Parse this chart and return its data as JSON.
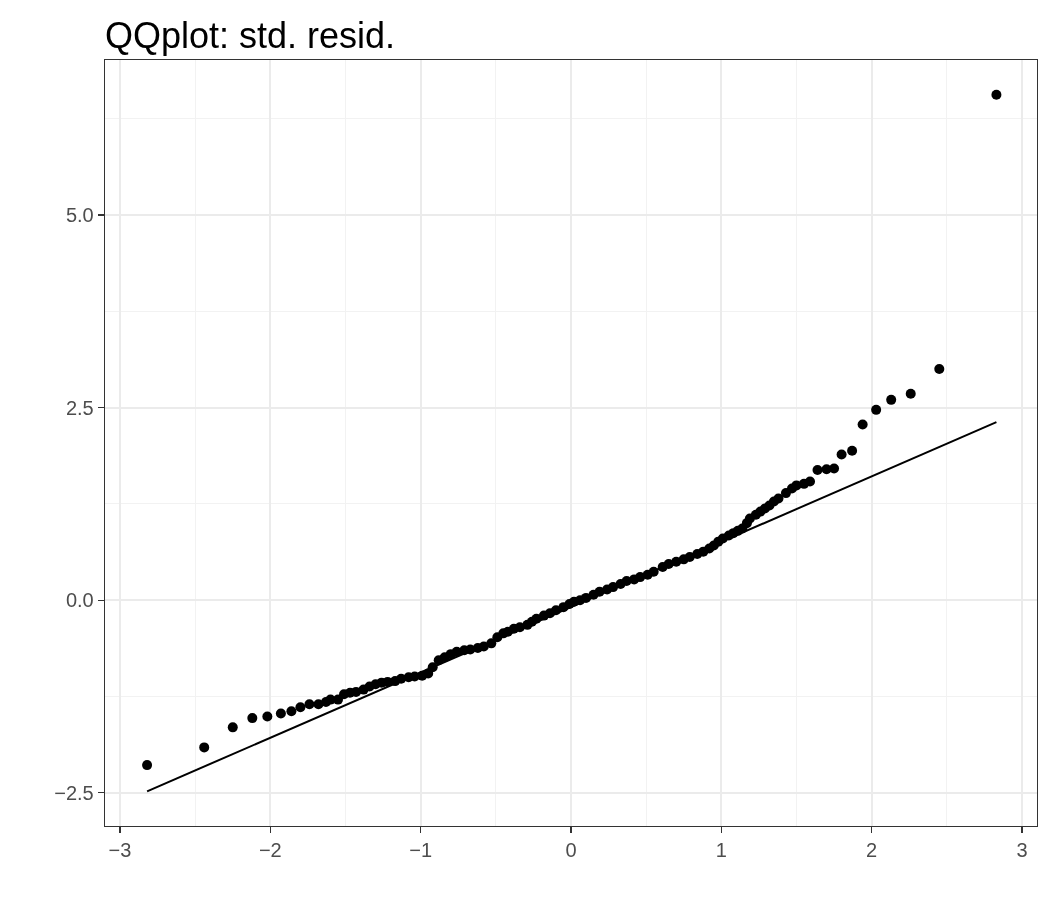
{
  "chart_data": {
    "type": "scatter",
    "title": "QQplot: std. resid.",
    "series": [
      {
        "type": "scatter",
        "color": "#000000",
        "marker": "circle",
        "x": [
          -2.82,
          -2.44,
          -2.25,
          -2.12,
          -2.02,
          -1.93,
          -1.86,
          -1.8,
          -1.74,
          -1.68,
          -1.63,
          -1.6,
          -1.55,
          -1.51,
          -1.47,
          -1.43,
          -1.38,
          -1.34,
          -1.3,
          -1.26,
          -1.22,
          -1.17,
          -1.13,
          -1.08,
          -1.04,
          -0.99,
          -0.95,
          -0.92,
          -0.88,
          -0.84,
          -0.8,
          -0.76,
          -0.71,
          -0.67,
          -0.62,
          -0.58,
          -0.53,
          -0.49,
          -0.45,
          -0.42,
          -0.38,
          -0.34,
          -0.29,
          -0.26,
          -0.23,
          -0.18,
          -0.14,
          -0.1,
          -0.05,
          -0.01,
          0.02,
          0.06,
          0.1,
          0.15,
          0.19,
          0.24,
          0.28,
          0.33,
          0.37,
          0.42,
          0.46,
          0.51,
          0.55,
          0.61,
          0.65,
          0.7,
          0.75,
          0.79,
          0.84,
          0.88,
          0.92,
          0.95,
          0.98,
          1.01,
          1.05,
          1.08,
          1.11,
          1.14,
          1.17,
          1.19,
          1.23,
          1.26,
          1.29,
          1.32,
          1.35,
          1.38,
          1.43,
          1.47,
          1.5,
          1.55,
          1.59,
          1.64,
          1.7,
          1.75,
          1.8,
          1.87,
          1.94,
          2.03,
          2.13,
          2.26,
          2.45,
          2.83
        ],
        "values": [
          -2.14,
          -1.91,
          -1.65,
          -1.53,
          -1.51,
          -1.47,
          -1.44,
          -1.39,
          -1.35,
          -1.35,
          -1.32,
          -1.29,
          -1.29,
          -1.22,
          -1.2,
          -1.19,
          -1.16,
          -1.12,
          -1.09,
          -1.07,
          -1.06,
          -1.05,
          -1.02,
          -1.0,
          -0.99,
          -0.98,
          -0.95,
          -0.87,
          -0.78,
          -0.74,
          -0.7,
          -0.67,
          -0.65,
          -0.64,
          -0.62,
          -0.6,
          -0.56,
          -0.48,
          -0.43,
          -0.41,
          -0.37,
          -0.35,
          -0.32,
          -0.28,
          -0.24,
          -0.2,
          -0.17,
          -0.13,
          -0.09,
          -0.05,
          -0.02,
          0.0,
          0.03,
          0.07,
          0.11,
          0.14,
          0.17,
          0.21,
          0.25,
          0.27,
          0.3,
          0.33,
          0.37,
          0.43,
          0.47,
          0.5,
          0.53,
          0.56,
          0.6,
          0.63,
          0.67,
          0.71,
          0.76,
          0.8,
          0.84,
          0.87,
          0.9,
          0.93,
          1.0,
          1.06,
          1.11,
          1.15,
          1.19,
          1.23,
          1.28,
          1.32,
          1.39,
          1.45,
          1.49,
          1.51,
          1.54,
          1.69,
          1.7,
          1.71,
          1.89,
          1.94,
          2.28,
          2.47,
          2.6,
          2.68,
          3.0,
          6.56
        ]
      },
      {
        "type": "line",
        "color": "#000000",
        "line_style": "solid",
        "x": [
          -2.82,
          2.83
        ],
        "values": [
          -2.48,
          2.31
        ]
      }
    ],
    "xlim": [
      -3.1,
      3.1
    ],
    "ylim": [
      -2.93,
      7.01
    ],
    "xticks": [
      {
        "value": -3,
        "label": "−3"
      },
      {
        "value": -2,
        "label": "−2"
      },
      {
        "value": -1,
        "label": "−1"
      },
      0,
      1,
      2,
      3
    ],
    "yticks": [
      {
        "value": -2.5,
        "label": "−2.5"
      },
      {
        "value": 0,
        "label": "0.0"
      },
      {
        "value": 2.5,
        "label": "2.5"
      },
      {
        "value": 5,
        "label": "5.0"
      }
    ],
    "grid": true
  }
}
